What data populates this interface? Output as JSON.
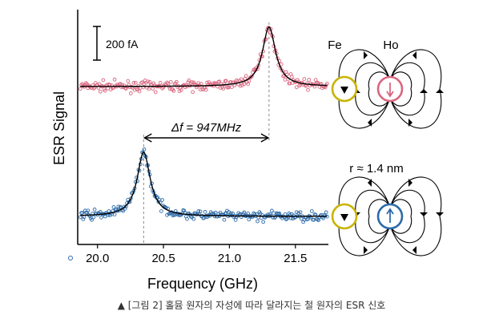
{
  "chart_data": {
    "type": "scatter",
    "xlabel": "Frequency (GHz)",
    "ylabel": "ESR Signal",
    "xlim": [
      19.85,
      21.75
    ],
    "xticks": [
      {
        "value": 20.0,
        "label": "20.0"
      },
      {
        "value": 20.5,
        "label": "20.5"
      },
      {
        "value": 21.0,
        "label": "21.0"
      },
      {
        "value": 21.5,
        "label": "21.5"
      }
    ],
    "scale_bar_label": "200 fA",
    "delta_f_label": "Δf = 947MHz",
    "series": [
      {
        "color": "#d9667f",
        "peak_ghz": 21.3,
        "peak_height": 0.93,
        "linewidth_ghz": 0.06,
        "noise": 0.05,
        "baseline": 0.0,
        "offset": 1.3
      },
      {
        "color": "#2d6aa8",
        "peak_ghz": 20.35,
        "peak_height": 1.0,
        "linewidth_ghz": 0.06,
        "noise": 0.05,
        "baseline": 0.0,
        "offset": 0.0
      }
    ],
    "legend": {
      "fe_label": "Fe",
      "ho_label": "Ho"
    },
    "r_label": "r ≈ 1.4 nm",
    "colors": {
      "fe": "#c8b400",
      "ho_top": "#d9667f",
      "ho_bottom": "#2d6aa8"
    }
  },
  "caption": {
    "marker": "▲",
    "text": "[그림 2] 홀뮴 원자의 자성에 따라 달라지는 철 원자의 ESR 신호"
  }
}
